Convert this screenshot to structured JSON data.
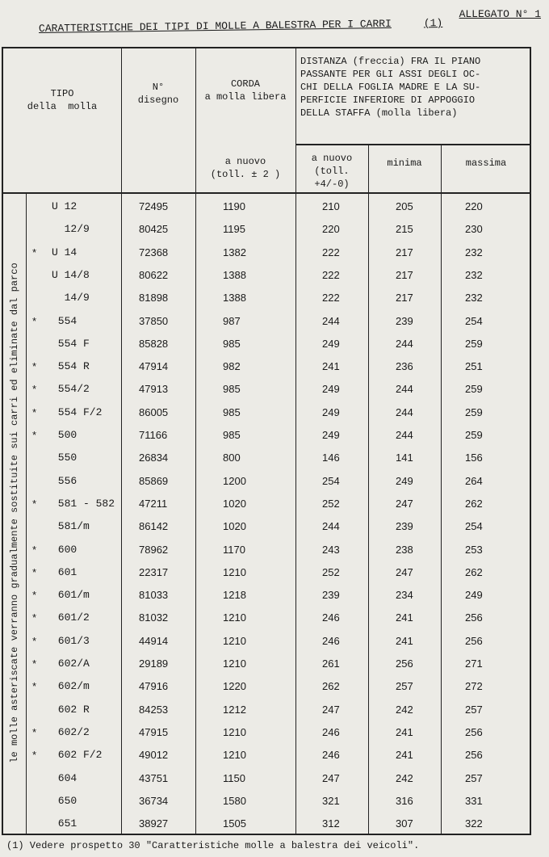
{
  "allegato": "ALLEGATO N° 1",
  "title": "CARATTERISTICHE DEI TIPI DI MOLLE A BALESTRA PER I CARRI",
  "title_ref": "(1)",
  "headers": {
    "tipo": [
      "TIPO",
      "della  molla"
    ],
    "disegno": [
      "N°",
      "disegno"
    ],
    "corda": [
      "CORDA",
      "a molla libera"
    ],
    "corda_sub": [
      "a nuovo",
      "(toll. ± 2 )"
    ],
    "distanza": [
      "DISTANZA (freccia) FRA IL PIANO",
      "PASSANTE PER GLI ASSI DEGLI OC-",
      "CHI DELLA FOGLIA MADRE E LA SU-",
      "PERFICIE INFERIORE DI APPOGGIO",
      "DELLA STAFFA (molla libera)"
    ],
    "distanza_nuovo": [
      "a nuovo",
      "(toll. +4/-0)"
    ],
    "minima": "minima",
    "massima": "massima"
  },
  "side_note": "le molle asteriscate verranno gradualmente sostituite sui carri ed eliminate dal parco",
  "rows": [
    {
      "star": "",
      "tipo": "U 12",
      "disegno": "72495",
      "corda": "1190",
      "nuovo": "210",
      "minima": "205",
      "massima": "220"
    },
    {
      "star": "",
      "tipo": "  12/9",
      "disegno": "80425",
      "corda": "1195",
      "nuovo": "220",
      "minima": "215",
      "massima": "230"
    },
    {
      "star": "*",
      "tipo": "U 14",
      "disegno": "72368",
      "corda": "1382",
      "nuovo": "222",
      "minima": "217",
      "massima": "232"
    },
    {
      "star": "",
      "tipo": "U 14/8",
      "disegno": "80622",
      "corda": "1388",
      "nuovo": "222",
      "minima": "217",
      "massima": "232"
    },
    {
      "star": "",
      "tipo": "  14/9",
      "disegno": "81898",
      "corda": "1388",
      "nuovo": "222",
      "minima": "217",
      "massima": "232"
    },
    {
      "star": "*",
      "tipo": " 554",
      "disegno": "37850",
      "corda": "987",
      "nuovo": "244",
      "minima": "239",
      "massima": "254"
    },
    {
      "star": "",
      "tipo": " 554 F",
      "disegno": "85828",
      "corda": "985",
      "nuovo": "249",
      "minima": "244",
      "massima": "259"
    },
    {
      "star": "*",
      "tipo": " 554 R",
      "disegno": "47914",
      "corda": "982",
      "nuovo": "241",
      "minima": "236",
      "massima": "251"
    },
    {
      "star": "*",
      "tipo": " 554/2",
      "disegno": "47913",
      "corda": "985",
      "nuovo": "249",
      "minima": "244",
      "massima": "259"
    },
    {
      "star": "*",
      "tipo": " 554 F/2",
      "disegno": "86005",
      "corda": "985",
      "nuovo": "249",
      "minima": "244",
      "massima": "259"
    },
    {
      "star": "*",
      "tipo": " 500",
      "disegno": "71166",
      "corda": "985",
      "nuovo": "249",
      "minima": "244",
      "massima": "259"
    },
    {
      "star": "",
      "tipo": " 550",
      "disegno": "26834",
      "corda": "800",
      "nuovo": "146",
      "minima": "141",
      "massima": "156"
    },
    {
      "star": "",
      "tipo": " 556",
      "disegno": "85869",
      "corda": "1200",
      "nuovo": "254",
      "minima": "249",
      "massima": "264"
    },
    {
      "star": "*",
      "tipo": " 581 - 582",
      "disegno": "47211",
      "corda": "1020",
      "nuovo": "252",
      "minima": "247",
      "massima": "262"
    },
    {
      "star": "",
      "tipo": " 581/m",
      "disegno": "86142",
      "corda": "1020",
      "nuovo": "244",
      "minima": "239",
      "massima": "254"
    },
    {
      "star": "*",
      "tipo": " 600",
      "disegno": "78962",
      "corda": "1170",
      "nuovo": "243",
      "minima": "238",
      "massima": "253"
    },
    {
      "star": "*",
      "tipo": " 601",
      "disegno": "22317",
      "corda": "1210",
      "nuovo": "252",
      "minima": "247",
      "massima": "262"
    },
    {
      "star": "*",
      "tipo": " 601/m",
      "disegno": "81033",
      "corda": "1218",
      "nuovo": "239",
      "minima": "234",
      "massima": "249"
    },
    {
      "star": "*",
      "tipo": " 601/2",
      "disegno": "81032",
      "corda": "1210",
      "nuovo": "246",
      "minima": "241",
      "massima": "256"
    },
    {
      "star": "*",
      "tipo": " 601/3",
      "disegno": "44914",
      "corda": "1210",
      "nuovo": "246",
      "minima": "241",
      "massima": "256"
    },
    {
      "star": "*",
      "tipo": " 602/A",
      "disegno": "29189",
      "corda": "1210",
      "nuovo": "261",
      "minima": "256",
      "massima": "271"
    },
    {
      "star": "*",
      "tipo": " 602/m",
      "disegno": "47916",
      "corda": "1220",
      "nuovo": "262",
      "minima": "257",
      "massima": "272"
    },
    {
      "star": "",
      "tipo": " 602 R",
      "disegno": "84253",
      "corda": "1212",
      "nuovo": "247",
      "minima": "242",
      "massima": "257"
    },
    {
      "star": "*",
      "tipo": " 602/2",
      "disegno": "47915",
      "corda": "1210",
      "nuovo": "246",
      "minima": "241",
      "massima": "256"
    },
    {
      "star": "*",
      "tipo": " 602 F/2",
      "disegno": "49012",
      "corda": "1210",
      "nuovo": "246",
      "minima": "241",
      "massima": "256"
    },
    {
      "star": "",
      "tipo": " 604",
      "disegno": "43751",
      "corda": "1150",
      "nuovo": "247",
      "minima": "242",
      "massima": "257"
    },
    {
      "star": "",
      "tipo": " 650",
      "disegno": "36734",
      "corda": "1580",
      "nuovo": "321",
      "minima": "316",
      "massima": "331"
    },
    {
      "star": "",
      "tipo": " 651",
      "disegno": "38927",
      "corda": "1505",
      "nuovo": "312",
      "minima": "307",
      "massima": "322"
    }
  ],
  "footnote": "(1) Vedere prospetto 30 \"Caratteristiche molle a balestra dei veicoli\"."
}
